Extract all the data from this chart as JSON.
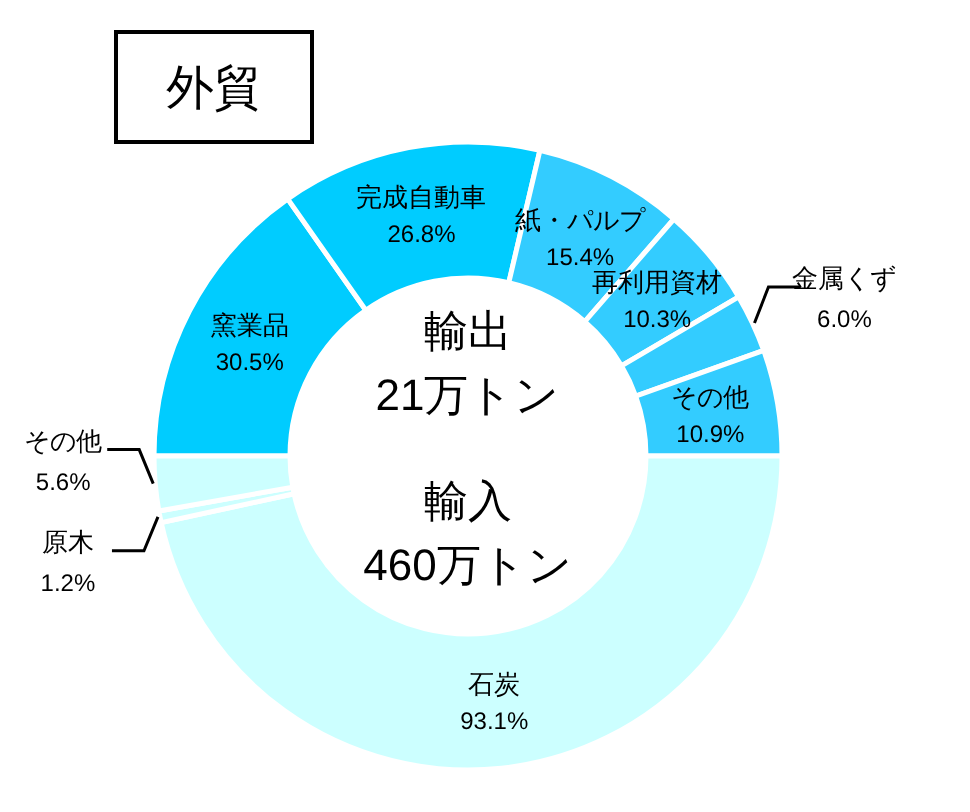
{
  "chart_data": [
    {
      "type": "donut",
      "title": "外貿",
      "annotations": [
        "輸出",
        "21万トン"
      ],
      "categories": [
        "窯業品",
        "完成自動車",
        "紙・パルプ",
        "再利用資材",
        "金属くず",
        "その他"
      ],
      "values": [
        30.5,
        26.8,
        15.4,
        10.3,
        6.0,
        10.9
      ],
      "value_labels": [
        "30.5%",
        "26.8%",
        "15.4%",
        "10.3%",
        "6.0%",
        "10.9%"
      ],
      "colors": [
        "#00ccff",
        "#00ccff",
        "#33ccff",
        "#33ccff",
        "#33ccff",
        "#33ccff"
      ]
    },
    {
      "type": "donut",
      "annotations": [
        "輸入",
        "460万トン"
      ],
      "categories": [
        "石炭",
        "原木",
        "その他"
      ],
      "values": [
        93.1,
        1.2,
        5.6
      ],
      "value_labels": [
        "93.1%",
        "1.2%",
        "5.6%"
      ],
      "colors": [
        "#ccffff",
        "#ccffff",
        "#ccffff"
      ]
    }
  ]
}
